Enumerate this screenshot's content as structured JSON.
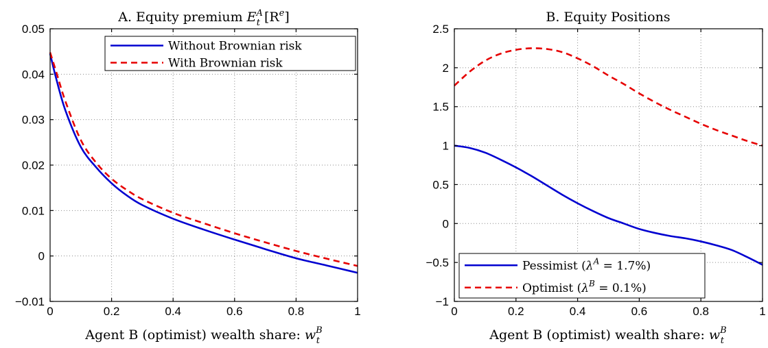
{
  "chart_data": [
    {
      "type": "line",
      "title": "A. Equity premium E_t^A[R^e]",
      "title_parts": {
        "main": "A. Equity premium ",
        "E": "E",
        "sup": "A",
        "sub": "t",
        "bracket": "[R",
        "bracket_sup": "e",
        "close": "]"
      },
      "xlabel": "Agent B (optimist) wealth share: w_t^B",
      "xlabel_parts": {
        "main": "Agent B (optimist) wealth share: ",
        "w": "w",
        "sup": "B",
        "sub": "t"
      },
      "ylabel": "",
      "xlim": [
        0,
        1
      ],
      "ylim": [
        -0.01,
        0.05
      ],
      "xticks": [
        0,
        0.2,
        0.4,
        0.6,
        0.8,
        1
      ],
      "xtick_labels": [
        "0",
        "0.2",
        "0.4",
        "0.6",
        "0.8",
        "1"
      ],
      "yticks": [
        -0.01,
        0,
        0.01,
        0.02,
        0.03,
        0.04,
        0.05
      ],
      "ytick_labels": [
        "−0.01",
        "0",
        "0.01",
        "0.02",
        "0.03",
        "0.04",
        "0.05"
      ],
      "grid": true,
      "legend_position": "top-right",
      "series": [
        {
          "name": "Without Brownian risk",
          "color": "#0000d0",
          "style": "solid",
          "x": [
            0,
            0.02,
            0.05,
            0.1,
            0.15,
            0.2,
            0.25,
            0.3,
            0.4,
            0.5,
            0.6,
            0.7,
            0.8,
            0.9,
            1.0
          ],
          "y": [
            0.0445,
            0.039,
            0.032,
            0.024,
            0.0195,
            0.016,
            0.0133,
            0.0112,
            0.0082,
            0.0058,
            0.0036,
            0.0015,
            -0.0005,
            -0.0021,
            -0.0037
          ]
        },
        {
          "name": "With Brownian risk",
          "color": "#e60000",
          "style": "dashed",
          "x": [
            0,
            0.02,
            0.05,
            0.1,
            0.15,
            0.2,
            0.25,
            0.3,
            0.4,
            0.5,
            0.6,
            0.7,
            0.8,
            0.9,
            1.0
          ],
          "y": [
            0.0448,
            0.0405,
            0.034,
            0.0255,
            0.0205,
            0.017,
            0.0145,
            0.0125,
            0.0095,
            0.0072,
            0.005,
            0.003,
            0.0011,
            -0.0006,
            -0.0022
          ]
        }
      ]
    },
    {
      "type": "line",
      "title": "B. Equity Positions",
      "xlabel": "Agent B (optimist) wealth share: w_t^B",
      "xlabel_parts": {
        "main": "Agent B (optimist) wealth share: ",
        "w": "w",
        "sup": "B",
        "sub": "t"
      },
      "ylabel": "",
      "xlim": [
        0,
        1
      ],
      "ylim": [
        -1,
        2.5
      ],
      "xticks": [
        0,
        0.2,
        0.4,
        0.6,
        0.8,
        1
      ],
      "xtick_labels": [
        "0",
        "0.2",
        "0.4",
        "0.6",
        "0.8",
        "1"
      ],
      "yticks": [
        -1,
        -0.5,
        0,
        0.5,
        1,
        1.5,
        2,
        2.5
      ],
      "ytick_labels": [
        "−1",
        "−0.5",
        "0",
        "0.5",
        "1",
        "1.5",
        "2",
        "2.5"
      ],
      "grid": true,
      "legend_position": "bottom-left",
      "series": [
        {
          "name": "Pessimist (λ^A = 1.7%)",
          "legend_parts": {
            "main": "Pessimist (",
            "lambda": "λ",
            "sup": "A",
            "rest": " = 1.7%)"
          },
          "color": "#0000d0",
          "style": "solid",
          "x": [
            0,
            0.05,
            0.1,
            0.15,
            0.2,
            0.25,
            0.3,
            0.35,
            0.4,
            0.45,
            0.5,
            0.55,
            0.6,
            0.65,
            0.7,
            0.75,
            0.8,
            0.85,
            0.9,
            0.95,
            1.0
          ],
          "y": [
            1.0,
            0.97,
            0.91,
            0.82,
            0.72,
            0.61,
            0.49,
            0.37,
            0.26,
            0.16,
            0.07,
            0.0,
            -0.07,
            -0.12,
            -0.16,
            -0.19,
            -0.23,
            -0.28,
            -0.34,
            -0.43,
            -0.53
          ]
        },
        {
          "name": "Optimist (λ^B = 0.1%)",
          "legend_parts": {
            "main": "Optimist (",
            "lambda": "λ",
            "sup": "B",
            "rest": " = 0.1%)"
          },
          "color": "#e60000",
          "style": "dashed",
          "x": [
            0,
            0.05,
            0.1,
            0.15,
            0.2,
            0.25,
            0.3,
            0.35,
            0.4,
            0.45,
            0.5,
            0.55,
            0.6,
            0.65,
            0.7,
            0.75,
            0.8,
            0.85,
            0.9,
            0.95,
            1.0
          ],
          "y": [
            1.77,
            1.95,
            2.09,
            2.18,
            2.23,
            2.25,
            2.24,
            2.2,
            2.12,
            2.02,
            1.9,
            1.79,
            1.67,
            1.56,
            1.46,
            1.37,
            1.28,
            1.2,
            1.13,
            1.06,
            1.0
          ]
        }
      ]
    }
  ]
}
